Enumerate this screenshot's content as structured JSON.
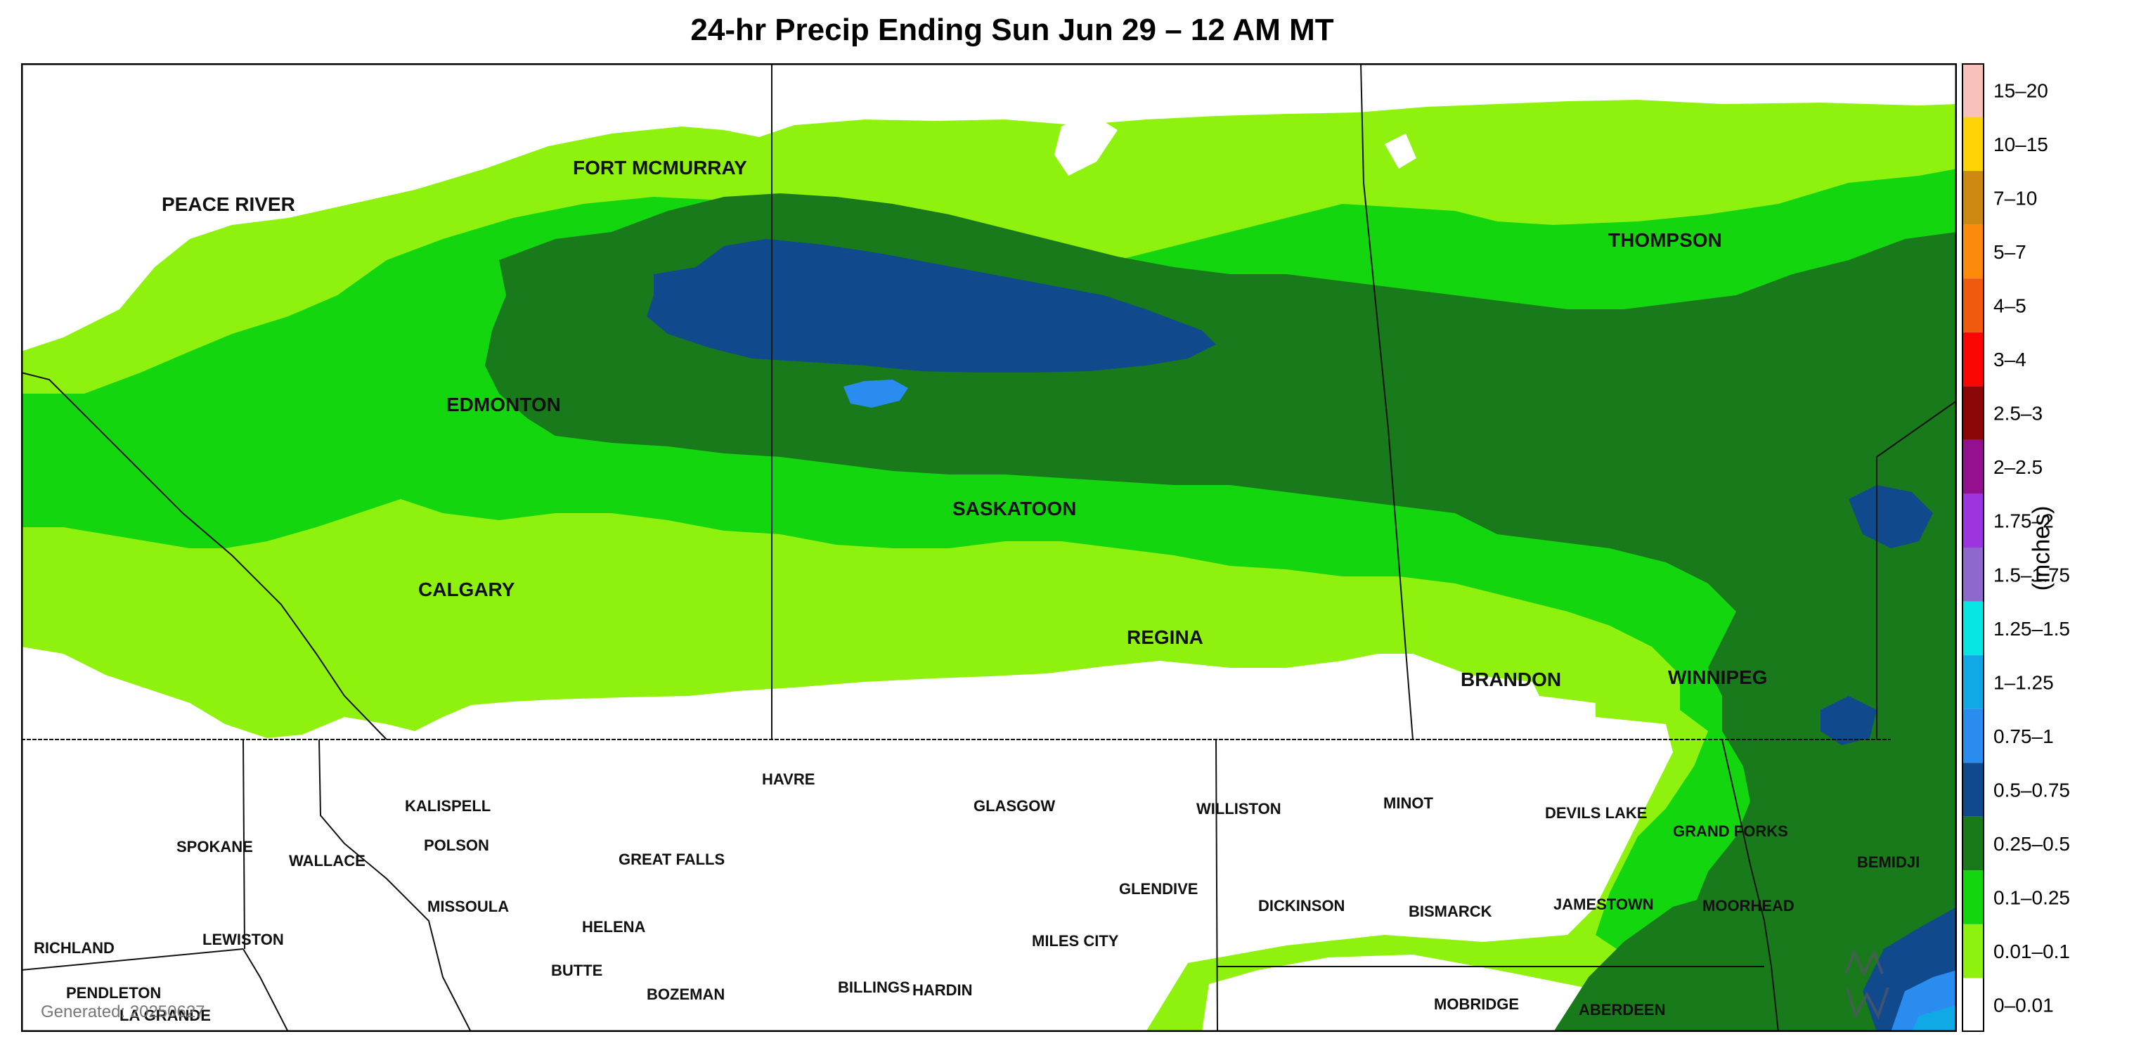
{
  "title": "24-hr Precip Ending Sun Jun 29 – 12 AM MT",
  "generated": "Generated: 20250627",
  "legend": {
    "units": "(inches)",
    "bins": [
      {
        "label": "15–20",
        "color": "#f6c2bb"
      },
      {
        "label": "10–15",
        "color": "#fdd306"
      },
      {
        "label": "7–10",
        "color": "#cd8a10"
      },
      {
        "label": "5–7",
        "color": "#fd8a0b"
      },
      {
        "label": "4–5",
        "color": "#f05a0c"
      },
      {
        "label": "3–4",
        "color": "#fb0505"
      },
      {
        "label": "2.5–3",
        "color": "#8c0808"
      },
      {
        "label": "2–2.5",
        "color": "#93108e"
      },
      {
        "label": "1.75–2",
        "color": "#9a35e0"
      },
      {
        "label": "1.5–1.75",
        "color": "#8f68cc"
      },
      {
        "label": "1.25–1.5",
        "color": "#06e7e3"
      },
      {
        "label": "1–1.25",
        "color": "#10a8e5"
      },
      {
        "label": "0.75–1",
        "color": "#2b8cf0"
      },
      {
        "label": "0.5–0.75",
        "color": "#104a8c"
      },
      {
        "label": "0.25–0.5",
        "color": "#187a1a"
      },
      {
        "label": "0.1–0.25",
        "color": "#14d60f"
      },
      {
        "label": "0.01–0.1",
        "color": "#8ff20e"
      },
      {
        "label": "0–0.01",
        "color": "#ffffff"
      }
    ]
  },
  "cities_canada": [
    "PEACE RIVER",
    "FORT MCMURRAY",
    "EDMONTON",
    "SASKATOON",
    "CALGARY",
    "REGINA",
    "THOMPSON",
    "BRANDON",
    "WINNIPEG"
  ],
  "cities_us": [
    "KALISPELL",
    "HAVRE",
    "GLASGOW",
    "WILLISTON",
    "MINOT",
    "DEVILS LAKE",
    "GRAND FORKS",
    "SPOKANE",
    "WALLACE",
    "POLSON",
    "GREAT FALLS",
    "BEMIDJI",
    "GLENDIVE",
    "MISSOULA",
    "DICKINSON",
    "BISMARCK",
    "JAMESTOWN",
    "MOORHEAD",
    "HELENA",
    "LEWISTON",
    "MILES CITY",
    "RICHLAND",
    "BUTTE",
    "BILLINGS",
    "HARDIN",
    "BOZEMAN",
    "MOBRIDGE",
    "ABERDEEN",
    "PENDLETON",
    "LA GRANDE"
  ],
  "colors": {
    "light_green": "#8ff20e",
    "green": "#14d60f",
    "dark_green": "#187a1a",
    "navy": "#104a8c",
    "blue": "#2b8cf0",
    "sky": "#10a8e5"
  }
}
